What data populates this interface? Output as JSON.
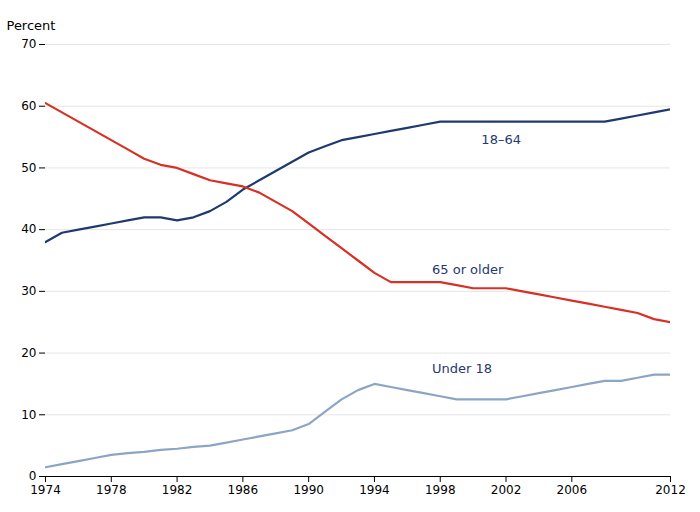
{
  "chart_data": {
    "type": "line",
    "ylabel": "Percent",
    "x": [
      1974,
      1975,
      1976,
      1977,
      1978,
      1979,
      1980,
      1981,
      1982,
      1983,
      1984,
      1985,
      1986,
      1987,
      1988,
      1989,
      1990,
      1991,
      1992,
      1993,
      1994,
      1995,
      1996,
      1997,
      1998,
      1999,
      2000,
      2001,
      2002,
      2003,
      2004,
      2005,
      2006,
      2007,
      2008,
      2009,
      2010,
      2011,
      2012
    ],
    "series": [
      {
        "name": "18–64",
        "color": "#1f3a6e",
        "values": [
          38.0,
          39.5,
          40.0,
          40.5,
          41.0,
          41.5,
          42.0,
          42.0,
          41.5,
          42.0,
          43.0,
          44.5,
          46.5,
          48.0,
          49.5,
          51.0,
          52.5,
          53.5,
          54.5,
          55.0,
          55.5,
          56.0,
          56.5,
          57.0,
          57.5,
          57.5,
          57.5,
          57.5,
          57.5,
          57.5,
          57.5,
          57.5,
          57.5,
          57.5,
          57.5,
          58.0,
          58.5,
          59.0,
          59.5
        ]
      },
      {
        "name": "65 or older",
        "color": "#d93025",
        "values": [
          60.5,
          59.0,
          57.5,
          56.0,
          54.5,
          53.0,
          51.5,
          50.5,
          50.0,
          49.0,
          48.0,
          47.5,
          47.0,
          46.0,
          44.5,
          43.0,
          41.0,
          39.0,
          37.0,
          35.0,
          33.0,
          31.5,
          31.5,
          31.5,
          31.5,
          31.0,
          30.5,
          30.5,
          30.5,
          30.0,
          29.5,
          29.0,
          28.5,
          28.0,
          27.5,
          27.0,
          26.5,
          25.5,
          25.0
        ]
      },
      {
        "name": "Under 18",
        "color": "#8ca5c5",
        "values": [
          1.5,
          2.0,
          2.5,
          3.0,
          3.5,
          3.8,
          4.0,
          4.3,
          4.5,
          4.8,
          5.0,
          5.5,
          6.0,
          6.5,
          7.0,
          7.5,
          8.5,
          10.5,
          12.5,
          14.0,
          15.0,
          14.5,
          14.0,
          13.5,
          13.0,
          12.5,
          12.5,
          12.5,
          12.5,
          13.0,
          13.5,
          14.0,
          14.5,
          15.0,
          15.5,
          15.5,
          16.0,
          16.5,
          16.5
        ]
      }
    ],
    "annotations": [
      {
        "text": "18–64",
        "x": 2000.5,
        "y": 54.5,
        "color": "#1f3a6e"
      },
      {
        "text": "65 or older",
        "x": 1997.5,
        "y": 33.5,
        "color": "#1f3a6e"
      },
      {
        "text": "Under 18",
        "x": 1997.5,
        "y": 17.5,
        "color": "#1f3a6e"
      }
    ],
    "xlim": [
      1974,
      2012
    ],
    "ylim": [
      0,
      70
    ],
    "xticks": [
      1974,
      1978,
      1982,
      1986,
      1990,
      1994,
      1998,
      2002,
      2006,
      2012
    ],
    "yticks": [
      0,
      10,
      20,
      30,
      40,
      50,
      60,
      70
    ],
    "grid": true
  }
}
